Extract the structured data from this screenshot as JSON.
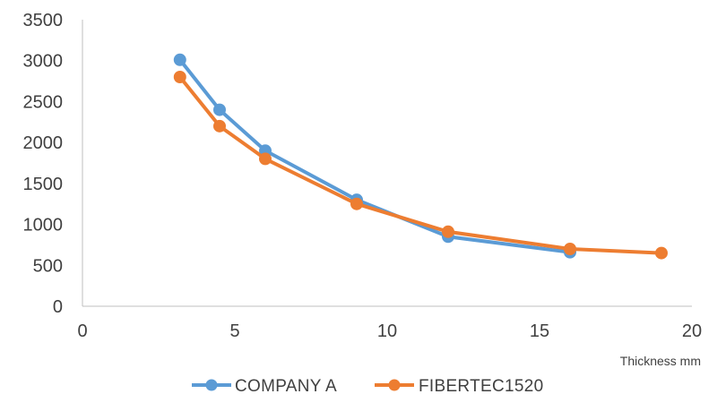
{
  "chart_data": {
    "type": "line",
    "title": "",
    "xlabel": "Thickness mm",
    "ylabel": "",
    "xlim": [
      0,
      20
    ],
    "ylim": [
      0,
      3500
    ],
    "x_ticks": [
      "0",
      "5",
      "10",
      "15",
      "20"
    ],
    "y_ticks": [
      "0",
      "500",
      "1000",
      "1500",
      "2000",
      "2500",
      "3000",
      "3500"
    ],
    "grid": false,
    "legend_position": "bottom",
    "series": [
      {
        "name": "COMPANY A",
        "color": "#5b9bd5",
        "x": [
          3.2,
          4.5,
          6,
          9,
          12,
          16
        ],
        "y": [
          3010,
          2400,
          1900,
          1300,
          850,
          660
        ]
      },
      {
        "name": "FIBERTEC1520",
        "color": "#ed7d31",
        "x": [
          3.2,
          4.5,
          6,
          9,
          12,
          16,
          19
        ],
        "y": [
          2800,
          2200,
          1800,
          1250,
          910,
          700,
          650
        ]
      }
    ]
  }
}
